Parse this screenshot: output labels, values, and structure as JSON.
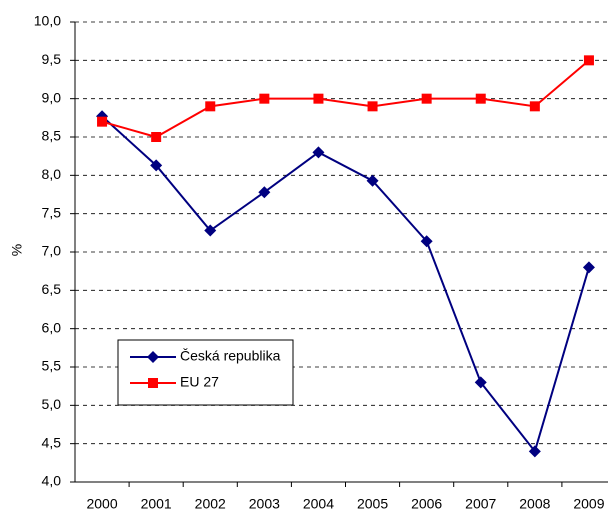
{
  "chart_data": {
    "type": "line",
    "y_label": "%",
    "categories": [
      "2000",
      "2001",
      "2002",
      "2003",
      "2004",
      "2005",
      "2006",
      "2007",
      "2008",
      "2009"
    ],
    "series": [
      {
        "name": "Česká republika",
        "color": "#000080",
        "marker": "diamond",
        "values": [
          8.77,
          8.13,
          7.28,
          7.78,
          8.3,
          7.93,
          7.14,
          5.3,
          4.4,
          6.8
        ]
      },
      {
        "name": "EU 27",
        "color": "#ff0000",
        "marker": "square",
        "values": [
          8.7,
          8.5,
          8.9,
          9.0,
          9.0,
          8.9,
          9.0,
          9.0,
          8.9,
          9.5
        ]
      }
    ],
    "ylim": [
      4,
      10
    ],
    "yticks": [
      {
        "value": 4,
        "label": "4,0"
      },
      {
        "value": 4.5,
        "label": "4,5"
      },
      {
        "value": 5,
        "label": "5,0"
      },
      {
        "value": 5.5,
        "label": "5,5"
      },
      {
        "value": 6,
        "label": "6,0"
      },
      {
        "value": 6.5,
        "label": "6,5"
      },
      {
        "value": 7,
        "label": "7,0"
      },
      {
        "value": 7.5,
        "label": "7,5"
      },
      {
        "value": 8,
        "label": "8,0"
      },
      {
        "value": 8.5,
        "label": "8,5"
      },
      {
        "value": 9,
        "label": "9,0"
      },
      {
        "value": 9.5,
        "label": "9,5"
      },
      {
        "value": 10,
        "label": "10,0"
      }
    ],
    "grid": true,
    "legend": "lower left"
  }
}
